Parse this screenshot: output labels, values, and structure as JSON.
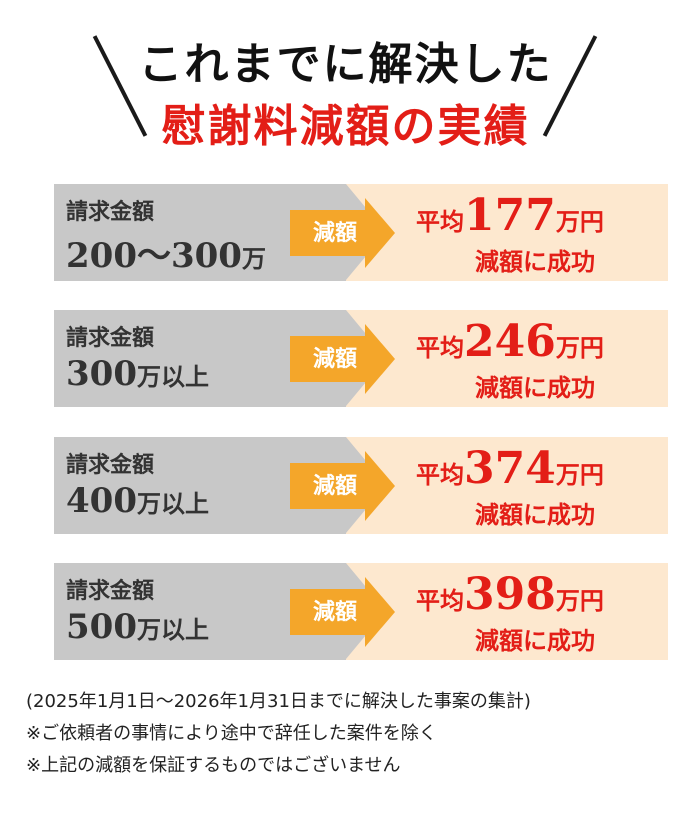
{
  "header": {
    "title_line1": "これまでに解決した",
    "title_line2": "慰謝料減額の実績"
  },
  "rows": [
    {
      "label": "請求金額",
      "amount": "200〜300",
      "amount_unit": "万",
      "arrow": "減額",
      "result_prefix": "平均",
      "result_value": "177",
      "result_unit": "万円",
      "result_suffix": "減額に成功"
    },
    {
      "label": "請求金額",
      "amount": "300",
      "amount_unit": "万以上",
      "arrow": "減額",
      "result_prefix": "平均",
      "result_value": "246",
      "result_unit": "万円",
      "result_suffix": "減額に成功"
    },
    {
      "label": "請求金額",
      "amount": "400",
      "amount_unit": "万以上",
      "arrow": "減額",
      "result_prefix": "平均",
      "result_value": "374",
      "result_unit": "万円",
      "result_suffix": "減額に成功"
    },
    {
      "label": "請求金額",
      "amount": "500",
      "amount_unit": "万以上",
      "arrow": "減額",
      "result_prefix": "平均",
      "result_value": "398",
      "result_unit": "万円",
      "result_suffix": "減額に成功"
    }
  ],
  "notes": [
    "(2025年1月1日〜2026年1月31日までに解決した事案の集計)",
    "※ご依頼者の事情により途中で辞任した案件を除く",
    "※上記の減額を保証するものではございません"
  ],
  "colors": {
    "accent_red": "#e31e17",
    "arrow_orange": "#f4a62a",
    "gray_panel": "#c8c8c8",
    "cream_panel": "#fde8cf"
  }
}
